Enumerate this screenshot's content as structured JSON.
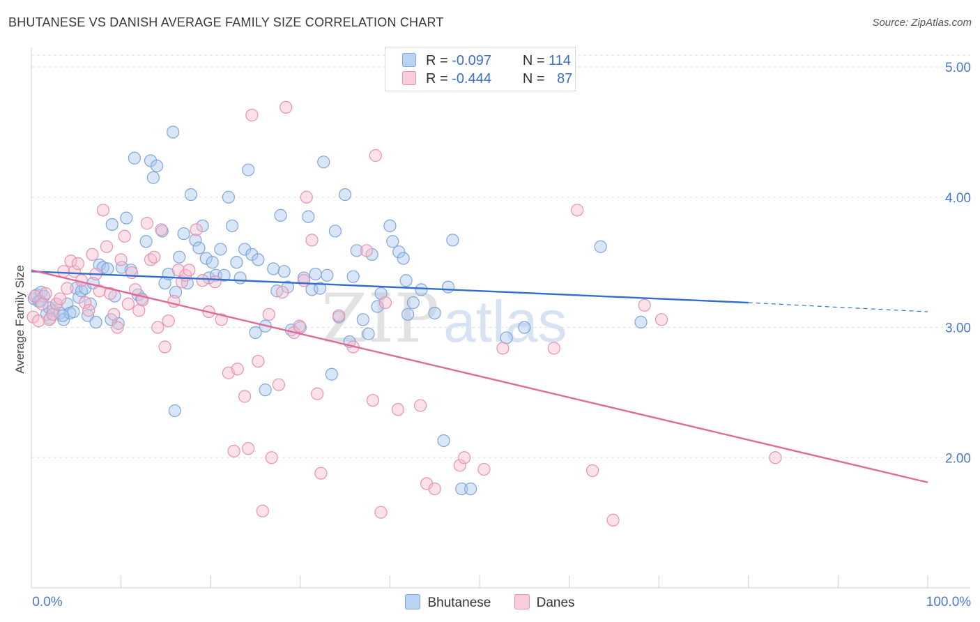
{
  "title": "BHUTANESE VS DANISH AVERAGE FAMILY SIZE CORRELATION CHART",
  "source": "Source: ZipAtlas.com",
  "watermark": {
    "zip": "ZIP",
    "atlas": "atlas"
  },
  "legend": {
    "r_label": "R =",
    "n_label": "N =",
    "rows": [
      {
        "name": "Bhutanese",
        "r": "-0.097",
        "n": "114"
      },
      {
        "name": "Danes",
        "r": "-0.444",
        "n": "87"
      }
    ]
  },
  "colors": {
    "bhutanese_fill": "#a9c8ee",
    "bhutanese_stroke": "#7fa6da",
    "bhutanese_line": "#2f6fcb",
    "danes_fill": "#f6bfd0",
    "danes_stroke": "#e891ae",
    "danes_line": "#e06a96",
    "axis_text": "#4a78c8",
    "grid": "#dedede"
  },
  "chart_data": {
    "type": "scatter",
    "title": "BHUTANESE VS DANISH AVERAGE FAMILY SIZE CORRELATION CHART",
    "xlabel": "",
    "ylabel": "Average Family Size",
    "xlim": [
      0,
      100
    ],
    "ylim": [
      1.0,
      5.15
    ],
    "x_tick_labels": [
      {
        "x": 0,
        "label": "0.0%"
      },
      {
        "x": 100,
        "label": "100.0%"
      }
    ],
    "y_ticks": [
      {
        "y": 2.0,
        "label": "2.00"
      },
      {
        "y": 3.0,
        "label": "3.00"
      },
      {
        "y": 4.0,
        "label": "4.00"
      },
      {
        "y": 5.0,
        "label": "5.00"
      }
    ],
    "grid": true,
    "series": [
      {
        "name": "Bhutanese",
        "trend": {
          "x": [
            0,
            80
          ],
          "y": [
            3.43,
            3.19
          ],
          "dashed_to": [
            100,
            3.12
          ]
        },
        "points": [
          [
            0.3,
            3.22
          ],
          [
            0.6,
            3.25
          ],
          [
            0.8,
            3.2
          ],
          [
            1.1,
            3.27
          ],
          [
            1.4,
            3.24
          ],
          [
            1.7,
            3.1
          ],
          [
            2.1,
            3.07
          ],
          [
            2.4,
            3.13
          ],
          [
            2.8,
            3.18
          ],
          [
            3.2,
            3.11
          ],
          [
            3.6,
            3.06
          ],
          [
            4.0,
            3.18
          ],
          [
            4.3,
            3.11
          ],
          [
            4.7,
            3.12
          ],
          [
            5.0,
            3.3
          ],
          [
            5.3,
            3.23
          ],
          [
            5.6,
            3.28
          ],
          [
            6.0,
            3.3
          ],
          [
            6.3,
            3.09
          ],
          [
            6.6,
            3.18
          ],
          [
            6.9,
            3.34
          ],
          [
            7.2,
            3.04
          ],
          [
            7.6,
            3.48
          ],
          [
            8.0,
            3.46
          ],
          [
            8.5,
            3.45
          ],
          [
            9.0,
            3.79
          ],
          [
            9.3,
            3.24
          ],
          [
            9.7,
            3.03
          ],
          [
            10.1,
            3.46
          ],
          [
            10.6,
            3.84
          ],
          [
            11.1,
            3.44
          ],
          [
            11.5,
            4.3
          ],
          [
            11.9,
            3.25
          ],
          [
            12.3,
            3.22
          ],
          [
            12.8,
            3.66
          ],
          [
            13.3,
            4.28
          ],
          [
            13.6,
            4.15
          ],
          [
            14.0,
            4.24
          ],
          [
            14.6,
            3.74
          ],
          [
            14.9,
            3.34
          ],
          [
            15.3,
            3.41
          ],
          [
            15.8,
            4.5
          ],
          [
            16.1,
            3.27
          ],
          [
            16.5,
            3.54
          ],
          [
            17.0,
            3.72
          ],
          [
            17.4,
            3.34
          ],
          [
            17.8,
            4.02
          ],
          [
            18.3,
            3.67
          ],
          [
            18.7,
            3.61
          ],
          [
            19.1,
            3.78
          ],
          [
            19.5,
            3.53
          ],
          [
            19.8,
            3.38
          ],
          [
            20.2,
            3.5
          ],
          [
            20.6,
            3.4
          ],
          [
            21.1,
            3.6
          ],
          [
            21.5,
            3.4
          ],
          [
            22.0,
            4.0
          ],
          [
            22.4,
            3.78
          ],
          [
            22.9,
            3.5
          ],
          [
            23.3,
            3.38
          ],
          [
            23.8,
            3.6
          ],
          [
            24.2,
            4.21
          ],
          [
            24.6,
            3.56
          ],
          [
            25.0,
            2.96
          ],
          [
            25.3,
            3.52
          ],
          [
            26.1,
            3.01
          ],
          [
            26.1,
            2.52
          ],
          [
            27.0,
            3.45
          ],
          [
            27.4,
            3.28
          ],
          [
            27.8,
            3.86
          ],
          [
            28.2,
            3.43
          ],
          [
            28.6,
            3.31
          ],
          [
            29.0,
            2.98
          ],
          [
            30.0,
            3.0
          ],
          [
            30.4,
            3.38
          ],
          [
            30.9,
            3.85
          ],
          [
            31.3,
            3.29
          ],
          [
            31.7,
            3.41
          ],
          [
            32.2,
            3.3
          ],
          [
            32.6,
            4.27
          ],
          [
            33.0,
            3.4
          ],
          [
            33.5,
            2.64
          ],
          [
            33.9,
            3.74
          ],
          [
            34.3,
            3.08
          ],
          [
            35.0,
            4.02
          ],
          [
            35.5,
            2.89
          ],
          [
            35.9,
            3.39
          ],
          [
            36.3,
            3.59
          ],
          [
            37.0,
            3.06
          ],
          [
            37.6,
            2.95
          ],
          [
            38.0,
            3.56
          ],
          [
            38.6,
            3.16
          ],
          [
            39.0,
            3.26
          ],
          [
            40.0,
            3.78
          ],
          [
            40.3,
            3.66
          ],
          [
            41.0,
            3.58
          ],
          [
            41.5,
            3.53
          ],
          [
            41.8,
            3.36
          ],
          [
            42.0,
            3.1
          ],
          [
            42.6,
            3.19
          ],
          [
            43.5,
            3.29
          ],
          [
            45.0,
            3.11
          ],
          [
            46.0,
            2.13
          ],
          [
            46.5,
            3.31
          ],
          [
            47.0,
            3.67
          ],
          [
            48.0,
            1.76
          ],
          [
            49.0,
            1.76
          ],
          [
            53.0,
            2.92
          ],
          [
            63.5,
            3.62
          ],
          [
            68.0,
            3.04
          ],
          [
            1.0,
            3.2
          ],
          [
            2.0,
            3.15
          ],
          [
            3.5,
            3.09
          ],
          [
            8.9,
            3.06
          ],
          [
            16.0,
            2.36
          ],
          [
            55.0,
            3.0
          ]
        ]
      },
      {
        "name": "Danes",
        "trend": {
          "x": [
            0,
            100
          ],
          "y": [
            3.44,
            1.81
          ]
        },
        "points": [
          [
            0.2,
            3.08
          ],
          [
            0.4,
            3.24
          ],
          [
            0.8,
            3.05
          ],
          [
            1.2,
            3.18
          ],
          [
            1.6,
            3.26
          ],
          [
            2.0,
            3.06
          ],
          [
            2.4,
            3.1
          ],
          [
            2.8,
            3.18
          ],
          [
            3.2,
            3.22
          ],
          [
            3.6,
            3.43
          ],
          [
            4.0,
            3.3
          ],
          [
            4.4,
            3.51
          ],
          [
            4.8,
            3.43
          ],
          [
            5.2,
            3.49
          ],
          [
            5.6,
            3.36
          ],
          [
            6.0,
            3.19
          ],
          [
            6.4,
            3.13
          ],
          [
            6.8,
            3.56
          ],
          [
            7.2,
            3.41
          ],
          [
            7.6,
            3.28
          ],
          [
            8.0,
            3.9
          ],
          [
            8.4,
            3.62
          ],
          [
            8.8,
            3.26
          ],
          [
            9.2,
            3.1
          ],
          [
            9.6,
            3.0
          ],
          [
            10.0,
            3.52
          ],
          [
            10.4,
            3.7
          ],
          [
            10.8,
            3.18
          ],
          [
            11.2,
            3.42
          ],
          [
            11.6,
            3.29
          ],
          [
            12.0,
            3.13
          ],
          [
            12.4,
            3.21
          ],
          [
            12.9,
            3.8
          ],
          [
            13.3,
            3.52
          ],
          [
            13.7,
            3.54
          ],
          [
            14.1,
            3.0
          ],
          [
            14.5,
            3.75
          ],
          [
            14.9,
            2.85
          ],
          [
            15.3,
            3.05
          ],
          [
            15.9,
            3.2
          ],
          [
            16.4,
            3.44
          ],
          [
            16.8,
            3.35
          ],
          [
            17.2,
            3.4
          ],
          [
            17.6,
            3.44
          ],
          [
            18.4,
            3.75
          ],
          [
            19.1,
            3.36
          ],
          [
            19.8,
            3.12
          ],
          [
            20.5,
            3.35
          ],
          [
            21.2,
            3.06
          ],
          [
            22.0,
            2.65
          ],
          [
            22.6,
            2.05
          ],
          [
            23.0,
            2.68
          ],
          [
            23.8,
            2.47
          ],
          [
            24.2,
            2.07
          ],
          [
            24.6,
            4.63
          ],
          [
            25.3,
            2.74
          ],
          [
            25.8,
            1.59
          ],
          [
            26.5,
            3.1
          ],
          [
            26.8,
            2.0
          ],
          [
            27.6,
            2.56
          ],
          [
            28.0,
            3.27
          ],
          [
            28.4,
            4.69
          ],
          [
            29.3,
            2.96
          ],
          [
            29.9,
            3.01
          ],
          [
            30.4,
            3.36
          ],
          [
            30.7,
            4.0
          ],
          [
            31.3,
            3.67
          ],
          [
            31.9,
            2.49
          ],
          [
            32.3,
            1.88
          ],
          [
            34.3,
            3.09
          ],
          [
            35.9,
            2.85
          ],
          [
            37.4,
            3.59
          ],
          [
            38.1,
            2.44
          ],
          [
            38.4,
            4.32
          ],
          [
            39.0,
            1.58
          ],
          [
            39.5,
            3.19
          ],
          [
            40.9,
            2.37
          ],
          [
            43.4,
            2.4
          ],
          [
            44.1,
            1.8
          ],
          [
            45.0,
            1.76
          ],
          [
            47.8,
            1.94
          ],
          [
            48.3,
            2.0
          ],
          [
            50.5,
            1.91
          ],
          [
            52.6,
            2.84
          ],
          [
            58.3,
            2.84
          ],
          [
            60.9,
            3.9
          ],
          [
            62.6,
            1.9
          ],
          [
            64.9,
            1.52
          ],
          [
            68.4,
            3.17
          ],
          [
            70.3,
            3.06
          ],
          [
            83.0,
            2.0
          ]
        ]
      }
    ]
  }
}
